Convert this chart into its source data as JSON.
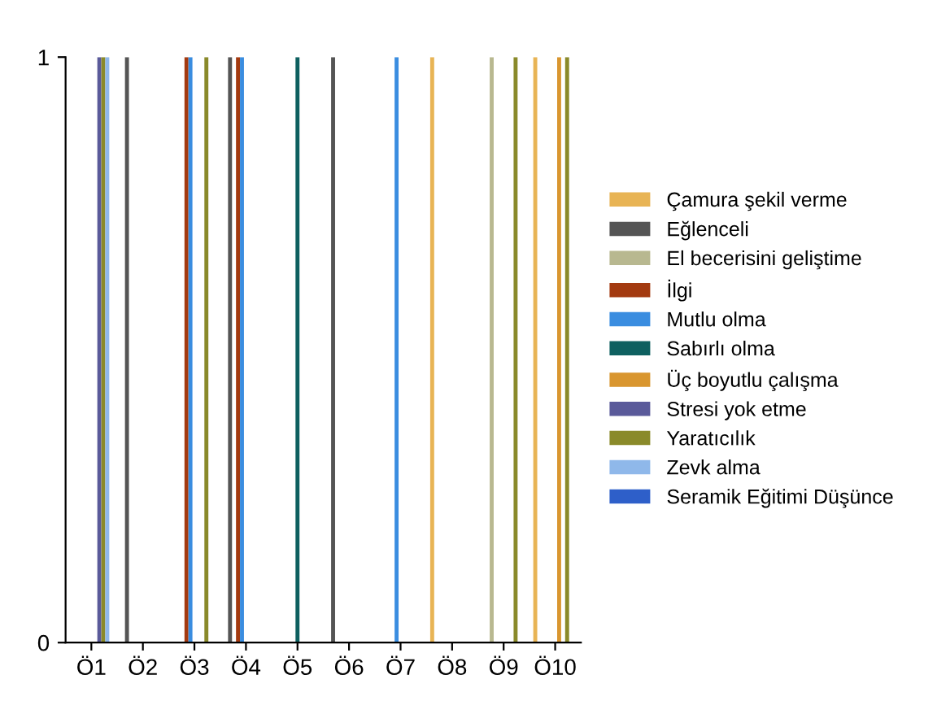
{
  "chart_data": {
    "type": "bar",
    "categories": [
      "Ö1",
      "Ö2",
      "Ö3",
      "Ö4",
      "Ö5",
      "Ö6",
      "Ö7",
      "Ö8",
      "Ö9",
      "Ö10"
    ],
    "series": [
      {
        "name": "Çamura şekil verme",
        "color": "#e8b455",
        "values": [
          0,
          0,
          0,
          0,
          0,
          0,
          0,
          1,
          0,
          1
        ]
      },
      {
        "name": "Eğlenceli",
        "color": "#555555",
        "values": [
          0,
          1,
          0,
          1,
          0,
          1,
          0,
          0,
          0,
          0
        ]
      },
      {
        "name": "El becerisini geliştime",
        "color": "#b8b890",
        "values": [
          0,
          0,
          0,
          0,
          0,
          0,
          0,
          0,
          1,
          0
        ]
      },
      {
        "name": "İlgi",
        "color": "#a33a10",
        "values": [
          0,
          0,
          1,
          1,
          0,
          0,
          0,
          0,
          0,
          0
        ]
      },
      {
        "name": "Mutlu olma",
        "color": "#3a8de0",
        "values": [
          0,
          0,
          1,
          1,
          0,
          0,
          1,
          0,
          0,
          0
        ]
      },
      {
        "name": "Sabırlı olma",
        "color": "#0e6060",
        "values": [
          0,
          0,
          0,
          0,
          1,
          0,
          0,
          0,
          0,
          0
        ]
      },
      {
        "name": "Üç boyutlu çalışma",
        "color": "#d9962f",
        "values": [
          0,
          0,
          0,
          0,
          0,
          0,
          0,
          0,
          0,
          1
        ]
      },
      {
        "name": "Stresi yok etme",
        "color": "#5a5a9a",
        "values": [
          1,
          0,
          0,
          0,
          0,
          0,
          0,
          0,
          0,
          0
        ]
      },
      {
        "name": "Yaratıcılık",
        "color": "#8a8a2a",
        "values": [
          1,
          0,
          1,
          0,
          0,
          0,
          0,
          0,
          1,
          1
        ]
      },
      {
        "name": "Zevk alma",
        "color": "#8fb8ea",
        "values": [
          1,
          0,
          0,
          0,
          0,
          0,
          0,
          0,
          0,
          0
        ]
      },
      {
        "name": "Seramik Eğitimi Düşünce",
        "color": "#2e5fc9",
        "values": [
          0,
          0,
          0,
          0,
          0,
          0,
          0,
          0,
          0,
          0
        ]
      }
    ],
    "ylim": [
      0,
      1
    ],
    "yticks": [
      0,
      1
    ],
    "grid": false,
    "legend": "right"
  }
}
